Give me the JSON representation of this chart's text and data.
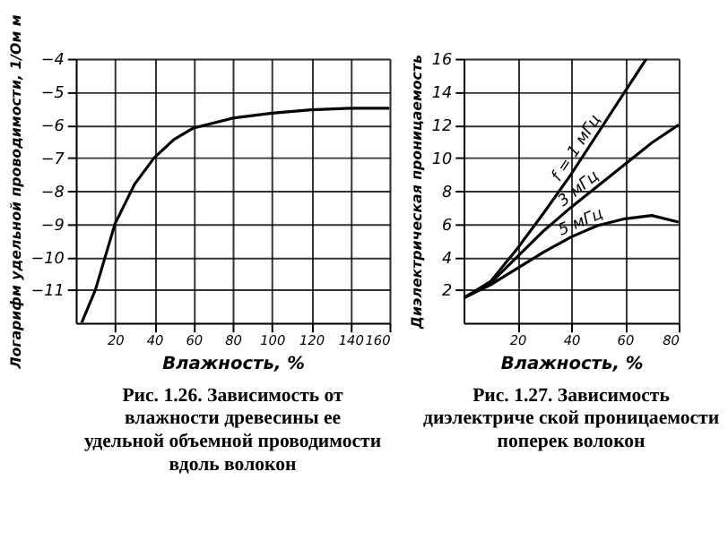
{
  "chart_data": [
    {
      "type": "line",
      "xlabel": "Влажность, %",
      "ylabel": "Логарифм удельной проводимости, 1/Ом м",
      "x": [
        3,
        10,
        20,
        30,
        40,
        50,
        60,
        80,
        100,
        120,
        140,
        160
      ],
      "series": [
        {
          "color": "#000000",
          "values": [
            -12,
            -11,
            -9,
            -7.8,
            -7,
            -6.45,
            -6.1,
            -5.8,
            -5.65,
            -5.55,
            -5.5,
            -5.5
          ]
        }
      ],
      "xlim": [
        0,
        160
      ],
      "xticks": [
        20,
        40,
        60,
        80,
        100,
        120,
        140,
        160
      ],
      "ylim": [
        -12,
        -4
      ],
      "yticks": [
        -11,
        -10,
        -9,
        -8,
        -7,
        -6,
        -5,
        -4
      ],
      "grid": true,
      "marker": "none",
      "annotations": [
        "Рис. 1.26. Зависимость от влажности древесины ее удельной объемной проводимости вдоль волокон"
      ]
    },
    {
      "type": "line",
      "xlabel": "Влажность, %",
      "ylabel": "Диэлектрическая проницаемость",
      "series": [
        {
          "name": "f = 1 мГц",
          "color": "#000000",
          "x": [
            0,
            10,
            20,
            30,
            40,
            50,
            60,
            68
          ],
          "values": [
            1.5,
            2.5,
            4.5,
            6.7,
            9,
            11.5,
            14,
            16
          ]
        },
        {
          "name": "3 мГц",
          "color": "#000000",
          "x": [
            0,
            10,
            20,
            30,
            40,
            50,
            60,
            70,
            80
          ],
          "values": [
            1.5,
            2.4,
            4,
            5.6,
            7,
            8.3,
            9.6,
            10.9,
            12
          ]
        },
        {
          "name": "5 мГц",
          "color": "#000000",
          "x": [
            0,
            10,
            20,
            30,
            40,
            50,
            60,
            70,
            80
          ],
          "values": [
            1.5,
            2.3,
            3.3,
            4.3,
            5.2,
            5.9,
            6.3,
            6.5,
            6.1
          ]
        }
      ],
      "xlim": [
        0,
        80
      ],
      "xticks": [
        20,
        40,
        60,
        80
      ],
      "ylim": [
        0,
        16
      ],
      "yticks": [
        2,
        4,
        6,
        8,
        10,
        12,
        14,
        16
      ],
      "grid": true,
      "marker": "none",
      "annotations": [
        "Рис. 1.27. Зависимость диэлектриче ской проницаемости поперек волокон"
      ]
    }
  ]
}
